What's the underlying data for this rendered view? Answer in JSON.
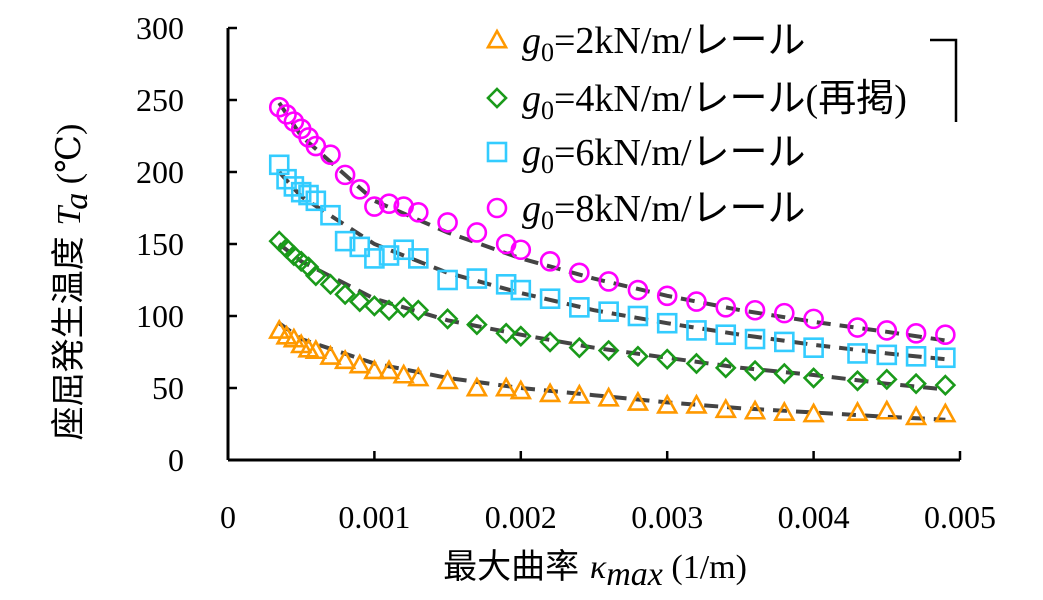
{
  "chart_data": {
    "type": "scatter",
    "title": "",
    "xlabel": "最大曲率 κmax (1/m)",
    "xlabel_parts": {
      "prefix": "最大曲率 ",
      "symbol": "κ",
      "subscript": "max",
      "suffix": " (1/m)"
    },
    "ylabel": "座屈発生温度 Ta (°C)",
    "ylabel_parts": {
      "prefix": "座屈発生温度 ",
      "symbol": "T",
      "subscript": "a",
      "suffix": " (℃)"
    },
    "xlim": [
      0,
      0.005
    ],
    "ylim": [
      0,
      300
    ],
    "xticks": [
      "0",
      "0.001",
      "0.002",
      "0.003",
      "0.004",
      "0.005"
    ],
    "yticks": [
      "0",
      "50",
      "100",
      "150",
      "200",
      "250",
      "300"
    ],
    "legend_position": "top-right",
    "grid": false,
    "series": [
      {
        "name": "g0=2kN/m/レール",
        "legend_label": {
          "symbol": "g",
          "subscript": "0",
          "suffix": "=2kN/m/レール"
        },
        "marker": "triangle",
        "color": "#ff9900",
        "points": [
          [
            0.00035,
            90
          ],
          [
            0.0004,
            86
          ],
          [
            0.00045,
            84
          ],
          [
            0.0005,
            80
          ],
          [
            0.00055,
            77
          ],
          [
            0.0006,
            76
          ],
          [
            0.0007,
            72
          ],
          [
            0.0008,
            69
          ],
          [
            0.0009,
            66
          ],
          [
            0.001,
            62
          ],
          [
            0.0011,
            62
          ],
          [
            0.0012,
            59
          ],
          [
            0.0013,
            57
          ],
          [
            0.0015,
            55
          ],
          [
            0.0017,
            50
          ],
          [
            0.0019,
            50
          ],
          [
            0.002,
            48
          ],
          [
            0.0022,
            46
          ],
          [
            0.0024,
            45
          ],
          [
            0.0026,
            43
          ],
          [
            0.0028,
            40
          ],
          [
            0.003,
            38
          ],
          [
            0.0032,
            38
          ],
          [
            0.0034,
            35
          ],
          [
            0.0036,
            34
          ],
          [
            0.0038,
            33
          ],
          [
            0.004,
            32
          ],
          [
            0.0043,
            33
          ],
          [
            0.0045,
            34
          ],
          [
            0.0047,
            30
          ],
          [
            0.0049,
            32
          ]
        ],
        "fit": [
          [
            0.00035,
            95
          ],
          [
            0.0005,
            84
          ],
          [
            0.001,
            67
          ],
          [
            0.0015,
            57
          ],
          [
            0.002,
            50
          ],
          [
            0.0025,
            45
          ],
          [
            0.003,
            40
          ],
          [
            0.0035,
            36
          ],
          [
            0.004,
            33
          ],
          [
            0.0045,
            30
          ],
          [
            0.0049,
            28
          ]
        ]
      },
      {
        "name": "g0=4kN/m/レール(再掲)",
        "legend_label": {
          "symbol": "g",
          "subscript": "0",
          "suffix": "=4kN/m/レール(再掲)"
        },
        "marker": "diamond",
        "color": "#1a9a1a",
        "points": [
          [
            0.00035,
            152
          ],
          [
            0.0004,
            147
          ],
          [
            0.00045,
            142
          ],
          [
            0.0005,
            138
          ],
          [
            0.00055,
            134
          ],
          [
            0.0006,
            128
          ],
          [
            0.0007,
            122
          ],
          [
            0.0008,
            115
          ],
          [
            0.0009,
            110
          ],
          [
            0.001,
            107
          ],
          [
            0.0011,
            104
          ],
          [
            0.0012,
            106
          ],
          [
            0.0013,
            104
          ],
          [
            0.0015,
            98
          ],
          [
            0.0017,
            94
          ],
          [
            0.0019,
            88
          ],
          [
            0.002,
            86
          ],
          [
            0.0022,
            82
          ],
          [
            0.0024,
            78
          ],
          [
            0.0026,
            76
          ],
          [
            0.0028,
            72
          ],
          [
            0.003,
            70
          ],
          [
            0.0032,
            67
          ],
          [
            0.0034,
            64
          ],
          [
            0.0036,
            62
          ],
          [
            0.0038,
            60
          ],
          [
            0.004,
            57
          ],
          [
            0.0043,
            55
          ],
          [
            0.0045,
            56
          ],
          [
            0.0047,
            53
          ],
          [
            0.0049,
            52
          ]
        ],
        "fit": [
          [
            0.00035,
            150
          ],
          [
            0.0005,
            138
          ],
          [
            0.001,
            112
          ],
          [
            0.0015,
            97
          ],
          [
            0.002,
            87
          ],
          [
            0.0025,
            78
          ],
          [
            0.003,
            71
          ],
          [
            0.0035,
            64
          ],
          [
            0.004,
            59
          ],
          [
            0.0045,
            53
          ],
          [
            0.0049,
            49
          ]
        ]
      },
      {
        "name": "g0=6kN/m/レール",
        "legend_label": {
          "symbol": "g",
          "subscript": "0",
          "suffix": "=6kN/m/レール"
        },
        "marker": "square",
        "color": "#33ccff",
        "points": [
          [
            0.00035,
            205
          ],
          [
            0.0004,
            195
          ],
          [
            0.00045,
            190
          ],
          [
            0.0005,
            186
          ],
          [
            0.00055,
            184
          ],
          [
            0.0006,
            180
          ],
          [
            0.0007,
            170
          ],
          [
            0.0008,
            152
          ],
          [
            0.0009,
            148
          ],
          [
            0.001,
            140
          ],
          [
            0.0011,
            142
          ],
          [
            0.0012,
            146
          ],
          [
            0.0013,
            140
          ],
          [
            0.0015,
            125
          ],
          [
            0.0017,
            126
          ],
          [
            0.0019,
            122
          ],
          [
            0.002,
            118
          ],
          [
            0.0022,
            112
          ],
          [
            0.0024,
            106
          ],
          [
            0.0026,
            103
          ],
          [
            0.0028,
            100
          ],
          [
            0.003,
            95
          ],
          [
            0.0032,
            90
          ],
          [
            0.0034,
            87
          ],
          [
            0.0036,
            84
          ],
          [
            0.0038,
            82
          ],
          [
            0.004,
            78
          ],
          [
            0.0043,
            74
          ],
          [
            0.0045,
            73
          ],
          [
            0.0047,
            72
          ],
          [
            0.0049,
            71
          ]
        ],
        "fit": [
          [
            0.00035,
            200
          ],
          [
            0.0005,
            183
          ],
          [
            0.001,
            150
          ],
          [
            0.0015,
            130
          ],
          [
            0.002,
            116
          ],
          [
            0.0025,
            104
          ],
          [
            0.003,
            95
          ],
          [
            0.0035,
            87
          ],
          [
            0.004,
            80
          ],
          [
            0.0045,
            74
          ],
          [
            0.0049,
            70
          ]
        ]
      },
      {
        "name": "g0=8kN/m/レール",
        "legend_label": {
          "symbol": "g",
          "subscript": "0",
          "suffix": "=8kN/m/レール"
        },
        "marker": "circle",
        "color": "#ff00ff",
        "points": [
          [
            0.00035,
            245
          ],
          [
            0.0004,
            240
          ],
          [
            0.00045,
            235
          ],
          [
            0.0005,
            230
          ],
          [
            0.00055,
            224
          ],
          [
            0.0006,
            218
          ],
          [
            0.0007,
            212
          ],
          [
            0.0008,
            198
          ],
          [
            0.0009,
            188
          ],
          [
            0.001,
            176
          ],
          [
            0.0011,
            178
          ],
          [
            0.0012,
            176
          ],
          [
            0.0013,
            172
          ],
          [
            0.0015,
            165
          ],
          [
            0.0017,
            158
          ],
          [
            0.0019,
            150
          ],
          [
            0.002,
            146
          ],
          [
            0.0022,
            138
          ],
          [
            0.0024,
            130
          ],
          [
            0.0026,
            124
          ],
          [
            0.0028,
            118
          ],
          [
            0.003,
            114
          ],
          [
            0.0032,
            110
          ],
          [
            0.0034,
            106
          ],
          [
            0.0036,
            104
          ],
          [
            0.0038,
            102
          ],
          [
            0.004,
            98
          ],
          [
            0.0043,
            92
          ],
          [
            0.0045,
            90
          ],
          [
            0.0047,
            88
          ],
          [
            0.0049,
            87
          ]
        ],
        "fit": [
          [
            0.00035,
            248
          ],
          [
            0.0005,
            225
          ],
          [
            0.001,
            180
          ],
          [
            0.0015,
            158
          ],
          [
            0.002,
            140
          ],
          [
            0.0025,
            126
          ],
          [
            0.003,
            114
          ],
          [
            0.0035,
            104
          ],
          [
            0.004,
            96
          ],
          [
            0.0045,
            89
          ],
          [
            0.0049,
            83
          ]
        ]
      }
    ]
  }
}
